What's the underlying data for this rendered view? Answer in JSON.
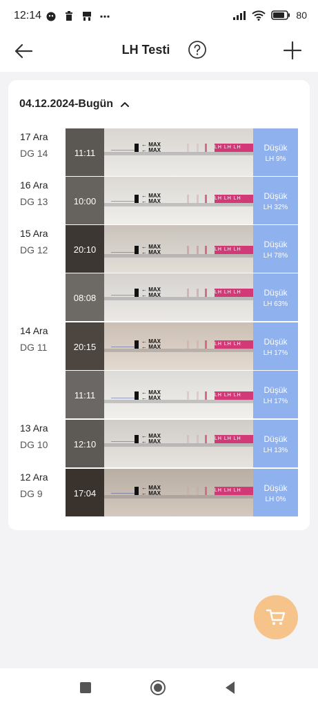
{
  "status": {
    "time": "12:14",
    "battery": "80"
  },
  "header": {
    "title": "LH Testi"
  },
  "group": {
    "label": "04.12.2024-Bugün"
  },
  "max_label": "MAX",
  "strip_print": "LH LH LH",
  "colors": {
    "accent": "#8fb1ee",
    "fab": "#f6c48b",
    "strip_pink": "#d23a77"
  },
  "tests": [
    {
      "date": "17 Ara",
      "cycle_day": "DG 14",
      "time": "11:11",
      "result": "Düşük",
      "lh": "LH 9%",
      "lh_value": 9
    },
    {
      "date": "16 Ara",
      "cycle_day": "DG 13",
      "time": "10:00",
      "result": "Düşük",
      "lh": "LH 32%",
      "lh_value": 32
    },
    {
      "date": "15 Ara",
      "cycle_day": "DG 12",
      "time": "20:10",
      "result": "Düşük",
      "lh": "LH 78%",
      "lh_value": 78
    },
    {
      "date": "",
      "cycle_day": "",
      "time": "08:08",
      "result": "Düşük",
      "lh": "LH 63%",
      "lh_value": 63
    },
    {
      "date": "14 Ara",
      "cycle_day": "DG 11",
      "time": "20:15",
      "result": "Düşük",
      "lh": "LH 17%",
      "lh_value": 17
    },
    {
      "date": "",
      "cycle_day": "",
      "time": "11:11",
      "result": "Düşük",
      "lh": "LH 17%",
      "lh_value": 17
    },
    {
      "date": "13 Ara",
      "cycle_day": "DG 10",
      "time": "12:10",
      "result": "Düşük",
      "lh": "LH 13%",
      "lh_value": 13
    },
    {
      "date": "12 Ara",
      "cycle_day": "DG 9",
      "time": "17:04",
      "result": "Düşük",
      "lh": "LH 0%",
      "lh_value": 0
    }
  ]
}
